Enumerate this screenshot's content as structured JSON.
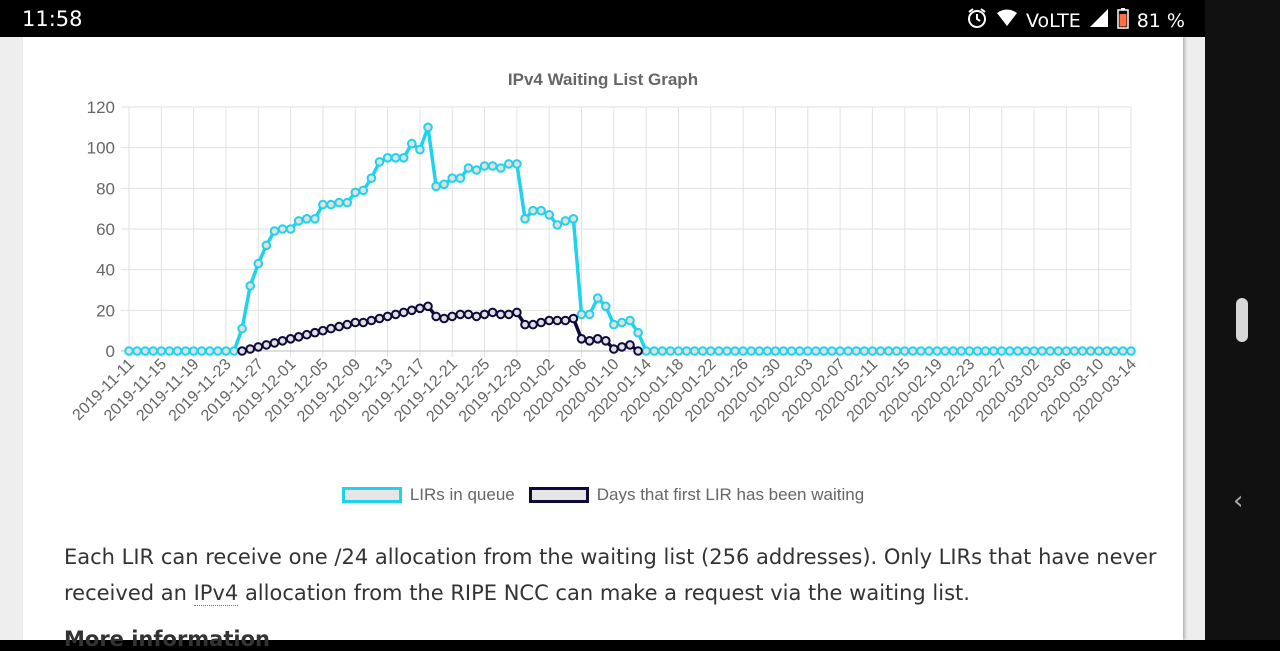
{
  "status_bar": {
    "time": "11:58",
    "network": "VoLTE",
    "battery": "81 %",
    "icons": [
      "alarm-icon",
      "wifi-icon",
      "signal-icon",
      "battery-icon"
    ]
  },
  "page": {
    "paragraph_before": "Each LIR can receive one /24 allocation from the waiting list (256 addresses). Only LIRs that have never received an ",
    "paragraph_abbr": "IPv4",
    "paragraph_after": " allocation from the RIPE NCC can make a request via the waiting list.",
    "more_info": "More information"
  },
  "nav": {
    "icons": [
      "scroll-handle",
      "back-chevron-icon"
    ]
  },
  "colors": {
    "queue": "#1ed4ec",
    "days": "#0f0a3c",
    "grid": "#e2e2e2",
    "text": "#666666"
  },
  "chart_data": {
    "type": "line",
    "title": "IPv4 Waiting List Graph",
    "xlabel": "",
    "ylabel": "",
    "ylim": [
      0,
      120
    ],
    "yticks": [
      0,
      20,
      40,
      60,
      80,
      100,
      120
    ],
    "grid": true,
    "legend_position": "bottom",
    "x_start": "2019-11-11",
    "x_end": "2020-03-14",
    "x_tick_labels": [
      "2019-11-11",
      "2019-11-15",
      "2019-11-19",
      "2019-11-23",
      "2019-11-27",
      "2019-12-01",
      "2019-12-05",
      "2019-12-09",
      "2019-12-13",
      "2019-12-17",
      "2019-12-21",
      "2019-12-25",
      "2019-12-29",
      "2020-01-02",
      "2020-01-06",
      "2020-01-10",
      "2020-01-14",
      "2020-01-18",
      "2020-01-22",
      "2020-01-26",
      "2020-01-30",
      "2020-02-03",
      "2020-02-07",
      "2020-02-11",
      "2020-02-15",
      "2020-02-19",
      "2020-02-23",
      "2020-02-27",
      "2020-03-02",
      "2020-03-06",
      "2020-03-10",
      "2020-03-14"
    ],
    "series": [
      {
        "name": "LIRs in queue",
        "color": "#1ed4ec",
        "values": [
          0,
          0,
          0,
          0,
          0,
          0,
          0,
          0,
          0,
          0,
          0,
          0,
          0,
          0,
          11,
          32,
          43,
          52,
          59,
          60,
          60,
          64,
          65,
          65,
          72,
          72,
          73,
          73,
          78,
          79,
          85,
          93,
          95,
          95,
          95,
          102,
          99,
          110,
          81,
          82,
          85,
          85,
          90,
          89,
          91,
          91,
          90,
          92,
          92,
          65,
          69,
          69,
          67,
          62,
          64,
          65,
          18,
          18,
          26,
          22,
          13,
          14,
          15,
          9,
          0,
          0,
          0,
          0,
          0,
          0,
          0,
          0,
          0,
          0,
          0,
          0,
          0,
          0,
          0,
          0,
          0,
          0,
          0,
          0,
          0,
          0,
          0,
          0,
          0,
          0,
          0,
          0,
          0,
          0,
          0,
          0,
          0,
          0,
          0,
          0,
          0,
          0,
          0,
          0,
          0,
          0,
          0,
          0,
          0,
          0,
          0,
          0,
          0,
          0,
          0,
          0,
          0,
          0,
          0,
          0,
          0,
          0,
          0,
          0,
          0
        ]
      },
      {
        "name": "Days that first LIR has been waiting",
        "color": "#0f0a3c",
        "values": [
          null,
          null,
          null,
          null,
          null,
          null,
          null,
          null,
          null,
          null,
          null,
          null,
          null,
          null,
          0,
          1,
          2,
          3,
          4,
          5,
          6,
          7,
          8,
          9,
          10,
          11,
          12,
          13,
          14,
          14,
          15,
          16,
          17,
          18,
          19,
          20,
          21,
          22,
          17,
          16,
          17,
          18,
          18,
          17,
          18,
          19,
          18,
          18,
          19,
          13,
          13,
          14,
          15,
          15,
          15,
          16,
          6,
          5,
          6,
          5,
          1,
          2,
          3,
          0,
          null,
          null,
          null,
          null,
          null,
          null,
          null,
          null,
          null,
          null,
          null,
          null,
          null,
          null,
          null,
          null,
          null,
          null,
          null,
          null,
          null,
          null,
          null,
          null,
          null,
          null,
          null,
          null,
          null,
          null,
          null,
          null,
          null,
          null,
          null,
          null,
          null,
          null,
          null,
          null,
          null,
          null,
          null,
          null,
          null,
          null,
          null,
          null,
          null,
          null,
          null,
          null,
          null,
          null,
          null,
          null,
          null,
          null,
          null,
          null,
          null
        ]
      }
    ]
  }
}
